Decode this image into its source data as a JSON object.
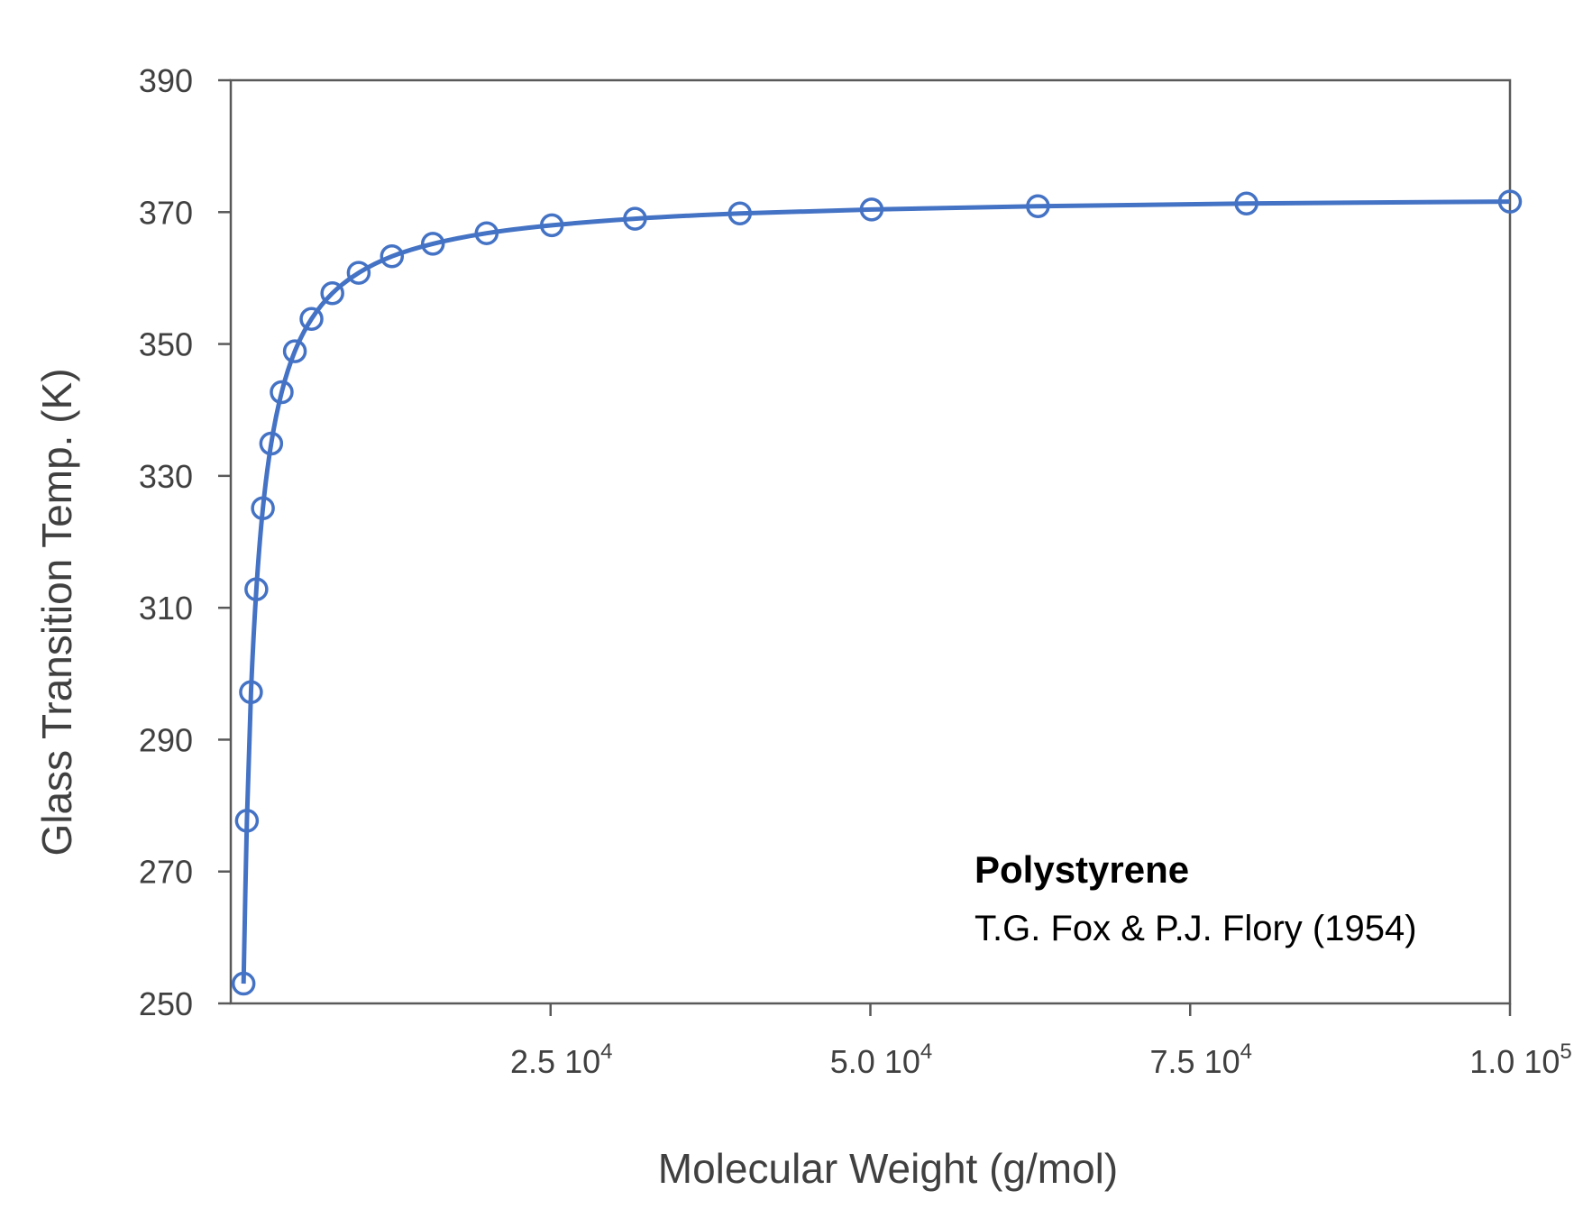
{
  "chart_data": {
    "type": "scatter",
    "title": "",
    "xlabel": "Molecular Weight (g/mol)",
    "ylabel": "Glass Transition Temp. (K)",
    "xlim": [
      0,
      100000
    ],
    "ylim": [
      250,
      390
    ],
    "yticks": [
      250,
      270,
      290,
      310,
      330,
      350,
      370,
      390
    ],
    "xticks": [
      {
        "value": 25000,
        "mantissa": "2.5 10",
        "exponent": "4"
      },
      {
        "value": 50000,
        "mantissa": "5.0 10",
        "exponent": "4"
      },
      {
        "value": 75000,
        "mantissa": "7.5 10",
        "exponent": "4"
      },
      {
        "value": 100000,
        "mantissa": "1.0 10",
        "exponent": "5"
      }
    ],
    "grid": false,
    "marker": "open-circle",
    "line": "smooth-fit",
    "color": "#4472C4",
    "series": [
      {
        "x": [
          1000,
          1260,
          1580,
          2000,
          2510,
          3160,
          3980,
          5010,
          6310,
          7940,
          10000,
          12600,
          15800,
          20000,
          25100,
          31600,
          39800,
          50100,
          63100,
          79400,
          100000
        ],
        "y": [
          253.0,
          277.7,
          297.2,
          312.8,
          325.1,
          334.9,
          342.7,
          348.9,
          353.8,
          357.7,
          360.8,
          363.3,
          365.2,
          366.8,
          368.0,
          369.0,
          369.8,
          370.4,
          370.9,
          371.3,
          371.6
        ]
      }
    ],
    "annotation": {
      "title": "Polystyrene",
      "subtitle": "T.G. Fox & P.J. Flory (1954)"
    }
  }
}
